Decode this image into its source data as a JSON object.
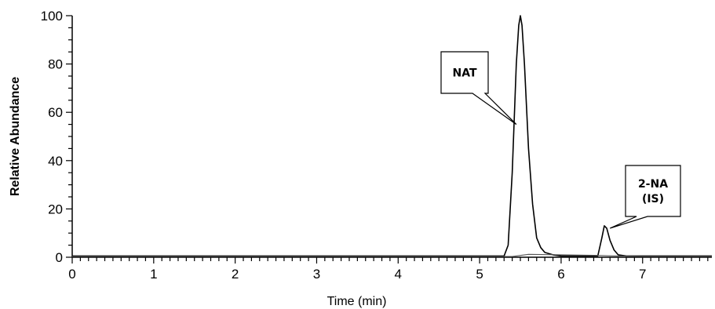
{
  "chart_data": {
    "type": "line",
    "xlabel": "Time (min)",
    "ylabel": "Relative Abundance",
    "xlim": [
      0,
      7.85
    ],
    "ylim": [
      0,
      100
    ],
    "x_ticks": [
      0,
      1,
      2,
      3,
      4,
      5,
      6,
      7
    ],
    "y_ticks": [
      0,
      20,
      40,
      60,
      80,
      100
    ],
    "grid": false,
    "series": [
      {
        "x": [
          0,
          5.3,
          5.35,
          5.4,
          5.45,
          5.48,
          5.5,
          5.52,
          5.55,
          5.6,
          5.65,
          5.7,
          5.75,
          5.8,
          5.9,
          6.0,
          6.2,
          6.45,
          6.5,
          6.53,
          6.56,
          6.6,
          6.65,
          6.7,
          6.8,
          7.0,
          7.85
        ],
        "values": [
          0.5,
          0.5,
          5,
          35,
          80,
          96,
          100,
          96,
          80,
          45,
          22,
          8,
          4,
          2,
          1,
          0.5,
          0.5,
          0.5,
          8,
          13,
          12,
          7,
          3,
          1,
          0.5,
          0.5,
          0.5
        ]
      },
      {
        "x": [
          0,
          5.4,
          5.6,
          6.0,
          6.4,
          6.6,
          7.0,
          7.85
        ],
        "values": [
          0.3,
          0.3,
          1.2,
          1.0,
          0.8,
          0.6,
          0.3,
          0.3
        ]
      }
    ],
    "annotations": [
      {
        "text": [
          "NAT"
        ],
        "x": 5.45,
        "y": 55
      },
      {
        "text": [
          "2-NA",
          "(IS)"
        ],
        "x": 6.6,
        "y": 12
      }
    ]
  }
}
